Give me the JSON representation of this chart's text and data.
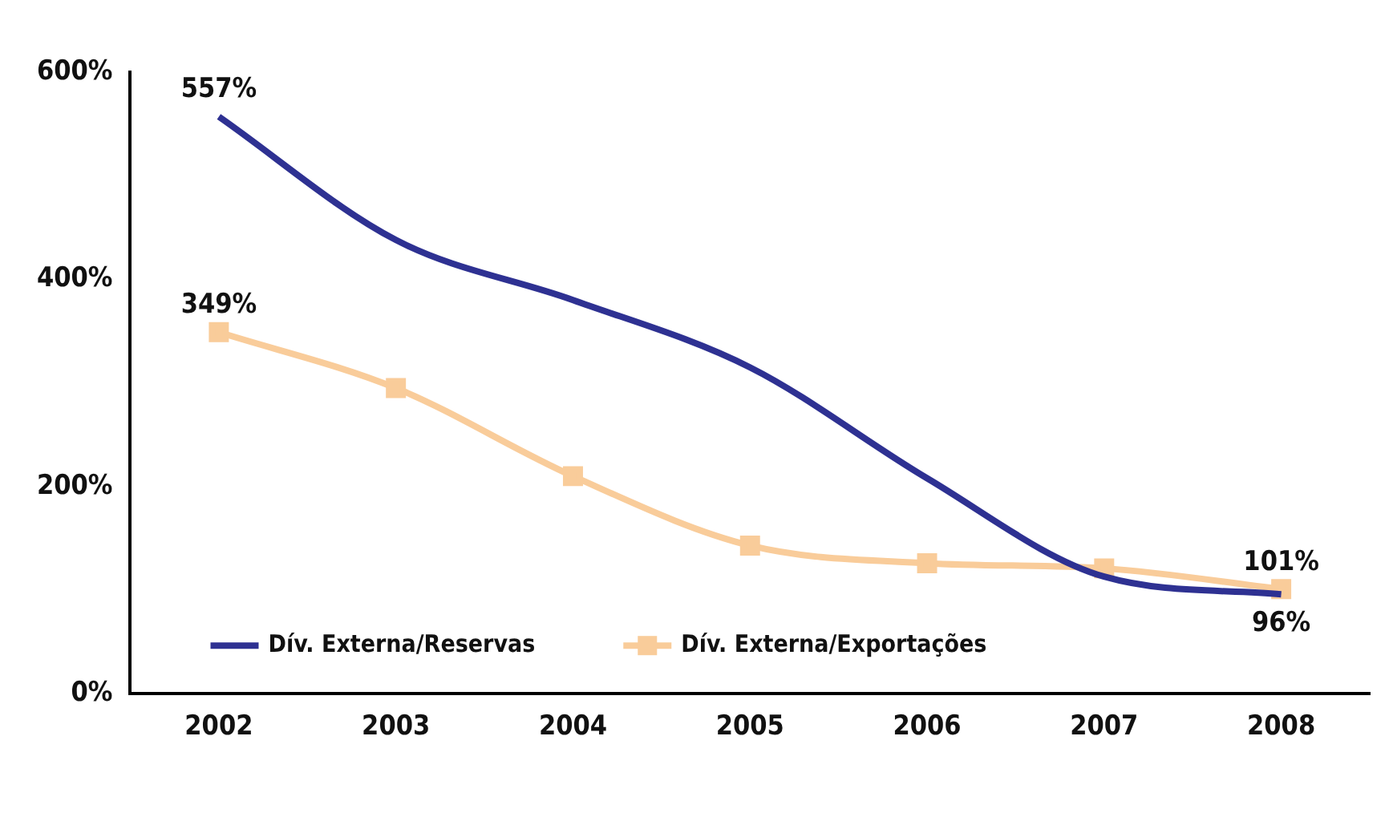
{
  "chart_data": {
    "type": "line",
    "categories": [
      "2002",
      "2003",
      "2004",
      "2005",
      "2006",
      "2007",
      "2008"
    ],
    "series": [
      {
        "name": "Dív. Externa/Reservas",
        "color": "#2e3192",
        "marker": "none",
        "values": [
          557,
          438,
          380,
          315,
          208,
          113,
          96
        ],
        "value_labels": [
          "557%",
          null,
          null,
          null,
          null,
          null,
          "96%"
        ]
      },
      {
        "name": "Dív. Externa/Exportações",
        "color": "#f9cc9a",
        "marker": "square",
        "values": [
          349,
          295,
          210,
          143,
          126,
          121,
          101
        ],
        "value_labels": [
          "349%",
          null,
          null,
          null,
          null,
          null,
          "101%"
        ]
      }
    ],
    "ylim": [
      0,
      600
    ],
    "yticks": [
      {
        "value": 0,
        "label": "0%"
      },
      {
        "value": 200,
        "label": "200%"
      },
      {
        "value": 400,
        "label": "400%"
      },
      {
        "value": 600,
        "label": "600%"
      }
    ],
    "grid": false,
    "legend": "bottom left",
    "line_style": "solid"
  }
}
